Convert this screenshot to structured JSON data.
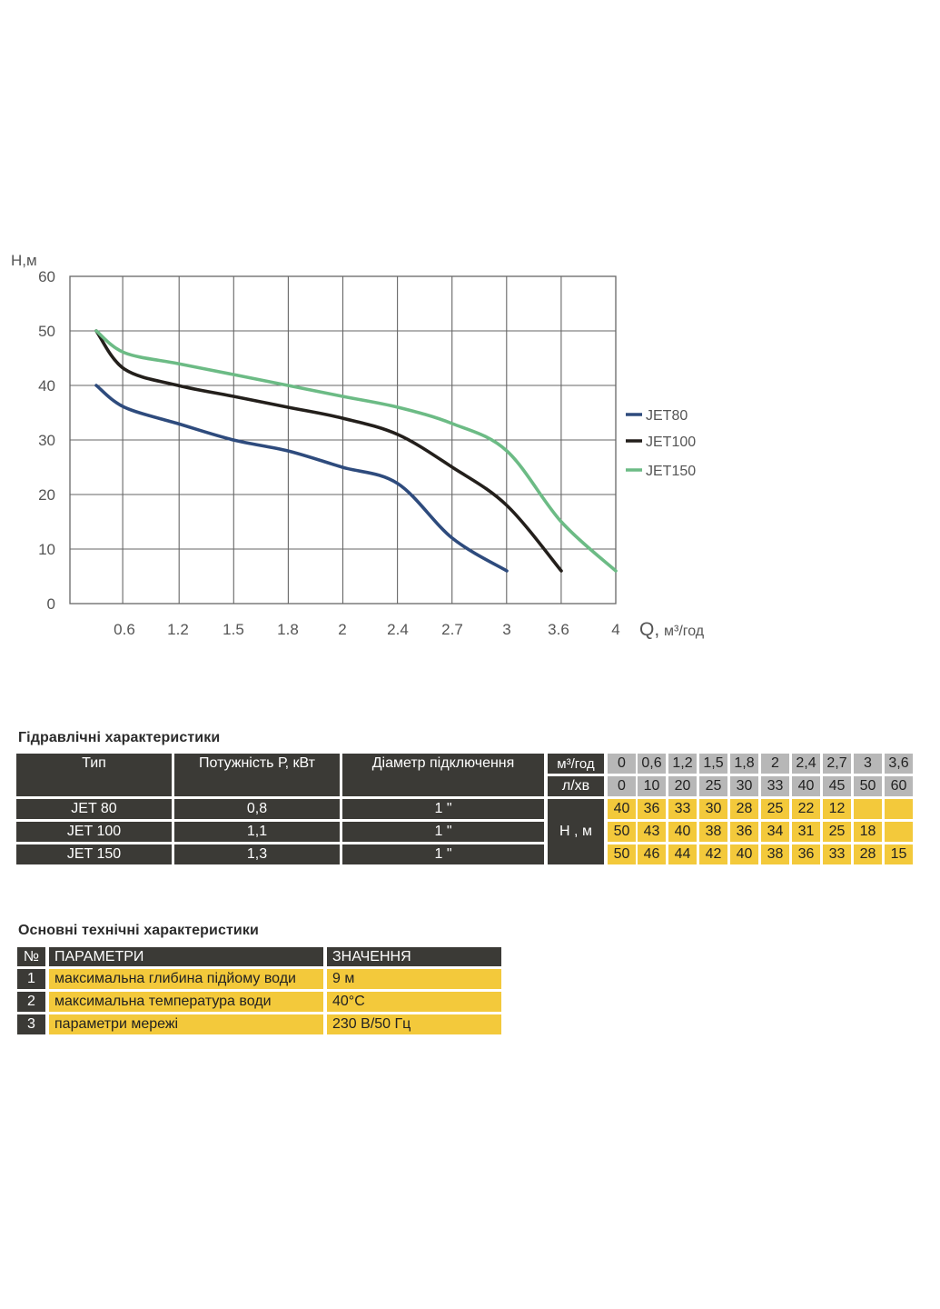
{
  "chart_data": {
    "type": "line",
    "ylabel": "Н,м",
    "xlabel_q": "Q,",
    "xlabel_unit": "м³/год",
    "ylim": [
      0,
      60
    ],
    "yticks": [
      "0",
      "10",
      "20",
      "30",
      "40",
      "50",
      "60"
    ],
    "xticks": [
      "0.6",
      "1.2",
      "1.5",
      "1.8",
      "2",
      "2.4",
      "2.7",
      "3",
      "3.6",
      "4"
    ],
    "grid": true,
    "legend_placement": "right",
    "series": [
      {
        "name": "JET80",
        "color": "#2e4b7d",
        "points": [
          [
            0,
            40
          ],
          [
            0.6,
            36
          ],
          [
            1.2,
            33
          ],
          [
            1.5,
            30
          ],
          [
            1.8,
            28
          ],
          [
            2,
            25
          ],
          [
            2.4,
            22
          ],
          [
            2.7,
            12
          ],
          [
            3,
            6
          ]
        ]
      },
      {
        "name": "JET100",
        "color": "#231f1b",
        "points": [
          [
            0,
            50
          ],
          [
            0.6,
            43
          ],
          [
            1.2,
            40
          ],
          [
            1.5,
            38
          ],
          [
            1.8,
            36
          ],
          [
            2,
            34
          ],
          [
            2.4,
            31
          ],
          [
            2.7,
            25
          ],
          [
            3,
            18
          ],
          [
            3.6,
            6
          ]
        ]
      },
      {
        "name": "JET150",
        "color": "#6cbb85",
        "points": [
          [
            0,
            50
          ],
          [
            0.6,
            46
          ],
          [
            1.2,
            44
          ],
          [
            1.5,
            42
          ],
          [
            1.8,
            40
          ],
          [
            2,
            38
          ],
          [
            2.4,
            36
          ],
          [
            2.7,
            33
          ],
          [
            3,
            28
          ],
          [
            3.6,
            15
          ],
          [
            4,
            6
          ]
        ]
      }
    ]
  },
  "hydraulic": {
    "title": "Гідравлічні характеристики",
    "headers": {
      "type": "Тип",
      "power": "Потужність   Р, кВт",
      "diameter": "Діаметр підключення"
    },
    "unit_flow_m3": "м³/год",
    "unit_flow_l": "л/хв",
    "head_label": "Н , м",
    "flow_m3": [
      "0",
      "0,6",
      "1,2",
      "1,5",
      "1,8",
      "2",
      "2,4",
      "2,7",
      "3",
      "3,6"
    ],
    "flow_l": [
      "0",
      "10",
      "20",
      "25",
      "30",
      "33",
      "40",
      "45",
      "50",
      "60"
    ],
    "rows": [
      {
        "type": "JET 80",
        "power": "0,8",
        "diameter": "1 \"",
        "heads": [
          "40",
          "36",
          "33",
          "30",
          "28",
          "25",
          "22",
          "12",
          "",
          ""
        ]
      },
      {
        "type": "JET 100",
        "power": "1,1",
        "diameter": "1 \"",
        "heads": [
          "50",
          "43",
          "40",
          "38",
          "36",
          "34",
          "31",
          "25",
          "18",
          ""
        ]
      },
      {
        "type": "JET 150",
        "power": "1,3",
        "diameter": "1 \"",
        "heads": [
          "50",
          "46",
          "44",
          "42",
          "40",
          "38",
          "36",
          "33",
          "28",
          "15"
        ]
      }
    ]
  },
  "specs": {
    "title": "Основні технічні характеристики",
    "headers": {
      "num": "№",
      "param": "ПАРАМЕТРИ",
      "value": "ЗНАЧЕННЯ"
    },
    "rows": [
      {
        "num": "1",
        "param": "максимальна глибина підйому води",
        "value": "9 м"
      },
      {
        "num": "2",
        "param": "максимальна температура води",
        "value": "40°С"
      },
      {
        "num": "3",
        "param": "параметри мережі",
        "value": "230 В/50 Гц"
      }
    ]
  },
  "colors": {
    "table_dark": "#3b3a36",
    "table_grey": "#b7b7b7",
    "table_yellow": "#f3c93b",
    "grid": "#666666"
  }
}
